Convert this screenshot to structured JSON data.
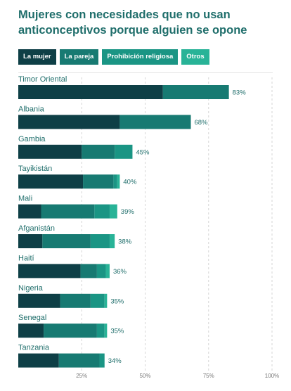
{
  "title": "Mujeres con necesidades que no usan anticonceptivos porque alguien se opone",
  "colors": {
    "la_mujer": "#0e3f46",
    "la_pareja": "#177a72",
    "prohibicion": "#1a9584",
    "otros": "#28b397"
  },
  "chart_data": {
    "type": "bar",
    "orientation": "horizontal",
    "stacked": true,
    "xlim": [
      0,
      100
    ],
    "x_ticks": [
      "25%",
      "50%",
      "75%",
      "100%"
    ],
    "legend_position": "top-left",
    "categories": [
      "Timor Oriental",
      "Albania",
      "Gambia",
      "Tayikistán",
      "Mali",
      "Afganistán",
      "Haití",
      "Nigeria",
      "Senegal",
      "Tanzania"
    ],
    "totals": [
      83,
      68,
      45,
      40,
      39,
      38,
      36,
      35,
      35,
      34
    ],
    "total_labels": [
      "83%",
      "68%",
      "45%",
      "40%",
      "39%",
      "38%",
      "36%",
      "35%",
      "35%",
      "34%"
    ],
    "series": [
      {
        "name": "La mujer",
        "color": "#0e3f46",
        "values": [
          57,
          40,
          25,
          25.5,
          9,
          9.5,
          24.5,
          16.5,
          10,
          16
        ]
      },
      {
        "name": "La pareja",
        "color": "#177a72",
        "values": [
          26,
          28,
          13,
          12,
          21,
          19,
          6.5,
          12,
          21,
          16
        ]
      },
      {
        "name": "Prohibición religiosa",
        "color": "#1a9584",
        "values": [
          0,
          0,
          7,
          1.5,
          6,
          7.5,
          3.5,
          5.5,
          3,
          2
        ]
      },
      {
        "name": "Otros",
        "color": "#28b397",
        "values": [
          0,
          0,
          0,
          1,
          3,
          2,
          1.5,
          1,
          1,
          0
        ]
      }
    ]
  }
}
